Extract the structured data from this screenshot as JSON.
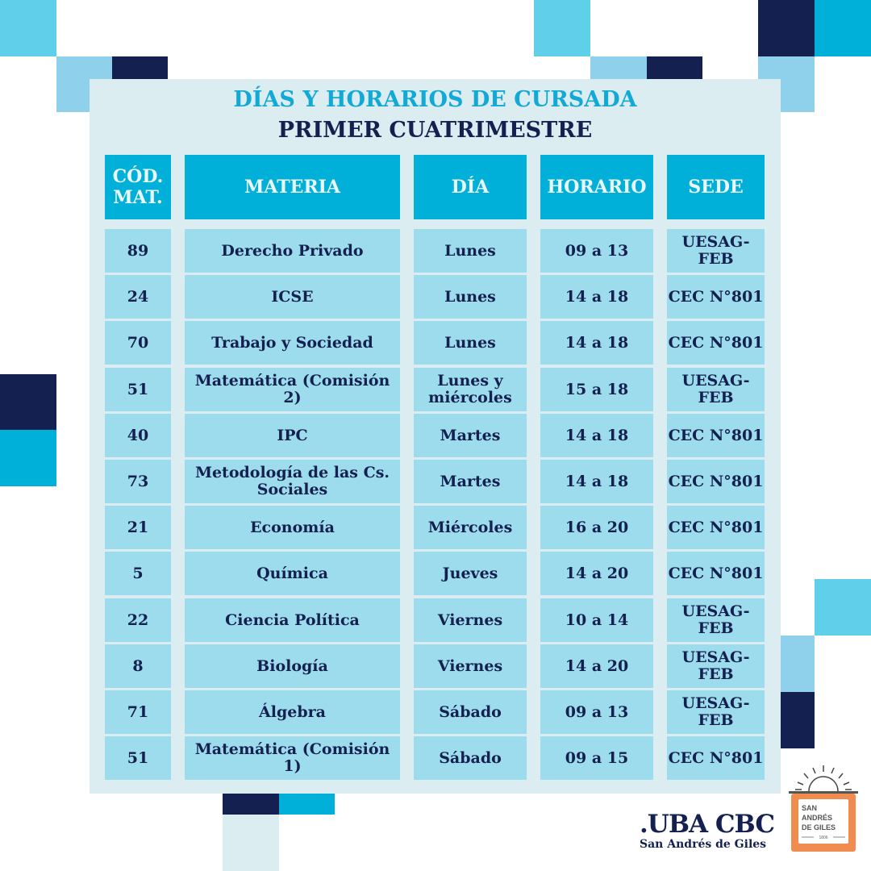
{
  "title": "DÍAS Y HORARIOS DE CURSADA",
  "subtitle": "PRIMER CUATRIMESTRE",
  "colors": {
    "navy": "#14204f",
    "cyan": "#00b0d8",
    "light_cyan": "#9ddcec",
    "panel": "#dcedf1",
    "orange": "#f08c4f"
  },
  "headers": [
    "CÓD. MAT.",
    "MATERIA",
    "DÍA",
    "HORARIO",
    "SEDE"
  ],
  "rows": [
    [
      "89",
      "Derecho Privado",
      "Lunes",
      "09 a 13",
      "UESAG-FEB"
    ],
    [
      "24",
      "ICSE",
      "Lunes",
      "14 a 18",
      "CEC N°801"
    ],
    [
      "70",
      "Trabajo y Sociedad",
      "Lunes",
      "14 a 18",
      "CEC N°801"
    ],
    [
      "51",
      "Matemática (Comisión 2)",
      "Lunes y miércoles",
      "15 a 18",
      "UESAG-FEB"
    ],
    [
      "40",
      "IPC",
      "Martes",
      "14 a 18",
      "CEC N°801"
    ],
    [
      "73",
      "Metodología de las Cs. Sociales",
      "Martes",
      "14 a 18",
      "CEC N°801"
    ],
    [
      "21",
      "Economía",
      "Miércoles",
      "16 a 20",
      "CEC N°801"
    ],
    [
      "5",
      "Química",
      "Jueves",
      "14 a 20",
      "CEC N°801"
    ],
    [
      "22",
      "Ciencia Política",
      "Viernes",
      "10 a 14",
      "UESAG-FEB"
    ],
    [
      "8",
      "Biología",
      "Viernes",
      "14 a 20",
      "UESAG-FEB"
    ],
    [
      "71",
      "Álgebra",
      "Sábado",
      "09 a 13",
      "UESAG-FEB"
    ],
    [
      "51",
      "Matemática (Comisión 1)",
      "Sábado",
      "09 a 15",
      "CEC N°801"
    ]
  ],
  "footer": {
    "brand": ".UBA CBC",
    "brand_sub": "San Andrés de Giles",
    "logo_text": "SAN ANDRÉS DE GILES",
    "logo_year": "1806"
  }
}
